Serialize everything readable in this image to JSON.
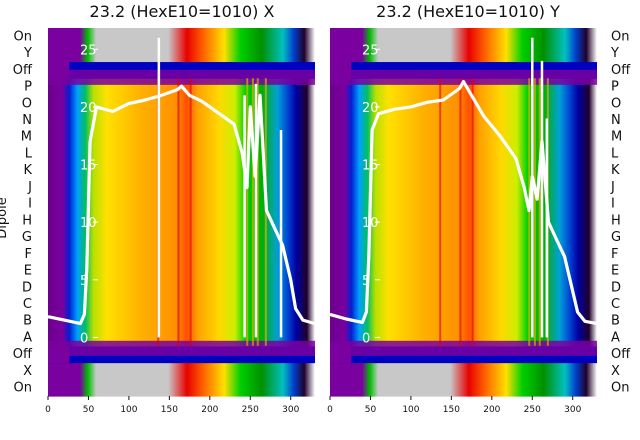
{
  "chart_data": {
    "type": "heatmap",
    "y_axis_label": "Dipole",
    "row_labels": [
      "On",
      "X",
      "Off",
      "A",
      "B",
      "C",
      "D",
      "E",
      "F",
      "G",
      "H",
      "I",
      "J",
      "K",
      "L",
      "M",
      "N",
      "O",
      "P",
      "Off",
      "Y",
      "On"
    ],
    "x_ticks": [
      0,
      50,
      100,
      150,
      200,
      250,
      300
    ],
    "x_range": [
      0,
      330
    ],
    "overlay_y_ticks": [
      0,
      5,
      10,
      15,
      20,
      25
    ],
    "overlay_y_range": [
      -3,
      26.5
    ],
    "colormap": "nipy_spectral-like: purple, blue, green, yellow, orange, red, gray",
    "panels": [
      {
        "title": "23.2 (HexE10=1010) X",
        "overlay_line": {
          "color": "#ffffff",
          "x": [
            0,
            20,
            40,
            45,
            48,
            52,
            60,
            80,
            100,
            120,
            140,
            160,
            165,
            175,
            190,
            210,
            230,
            240,
            246,
            250,
            256,
            262,
            270,
            280,
            290,
            300,
            306,
            315,
            330
          ],
          "y": [
            1.8,
            1.5,
            1.2,
            2.0,
            6,
            17,
            20,
            19.6,
            20.3,
            20.6,
            21.0,
            21.5,
            21.8,
            21.0,
            20.5,
            19.5,
            18.5,
            16,
            13,
            20,
            14,
            21,
            11,
            9.5,
            8,
            5,
            2.5,
            1.5,
            1.2
          ]
        },
        "spikes": [
          {
            "x": 137,
            "y_top": 26
          },
          {
            "x": 243,
            "y_top": 21
          },
          {
            "x": 257,
            "y_top": 22
          },
          {
            "x": 288,
            "y_top": 18
          }
        ]
      },
      {
        "title": "23.2 (HexE10=1010) Y",
        "overlay_line": {
          "color": "#ffffff",
          "x": [
            0,
            20,
            40,
            45,
            48,
            52,
            60,
            80,
            100,
            120,
            140,
            160,
            165,
            175,
            190,
            210,
            230,
            240,
            246,
            250,
            256,
            262,
            270,
            280,
            290,
            300,
            306,
            315,
            330
          ],
          "y": [
            2.0,
            1.6,
            1.3,
            2.2,
            7,
            18,
            19.4,
            19.8,
            20.0,
            20.4,
            20.6,
            21.6,
            22.2,
            21.0,
            19.2,
            17.5,
            15.5,
            13,
            11,
            14,
            12,
            17,
            10,
            8.5,
            7,
            4,
            2.2,
            1.4,
            1.2
          ]
        },
        "spikes": [
          {
            "x": 250,
            "y_top": 26
          },
          {
            "x": 262,
            "y_top": 24
          },
          {
            "x": 268,
            "y_top": 19
          }
        ]
      }
    ]
  }
}
